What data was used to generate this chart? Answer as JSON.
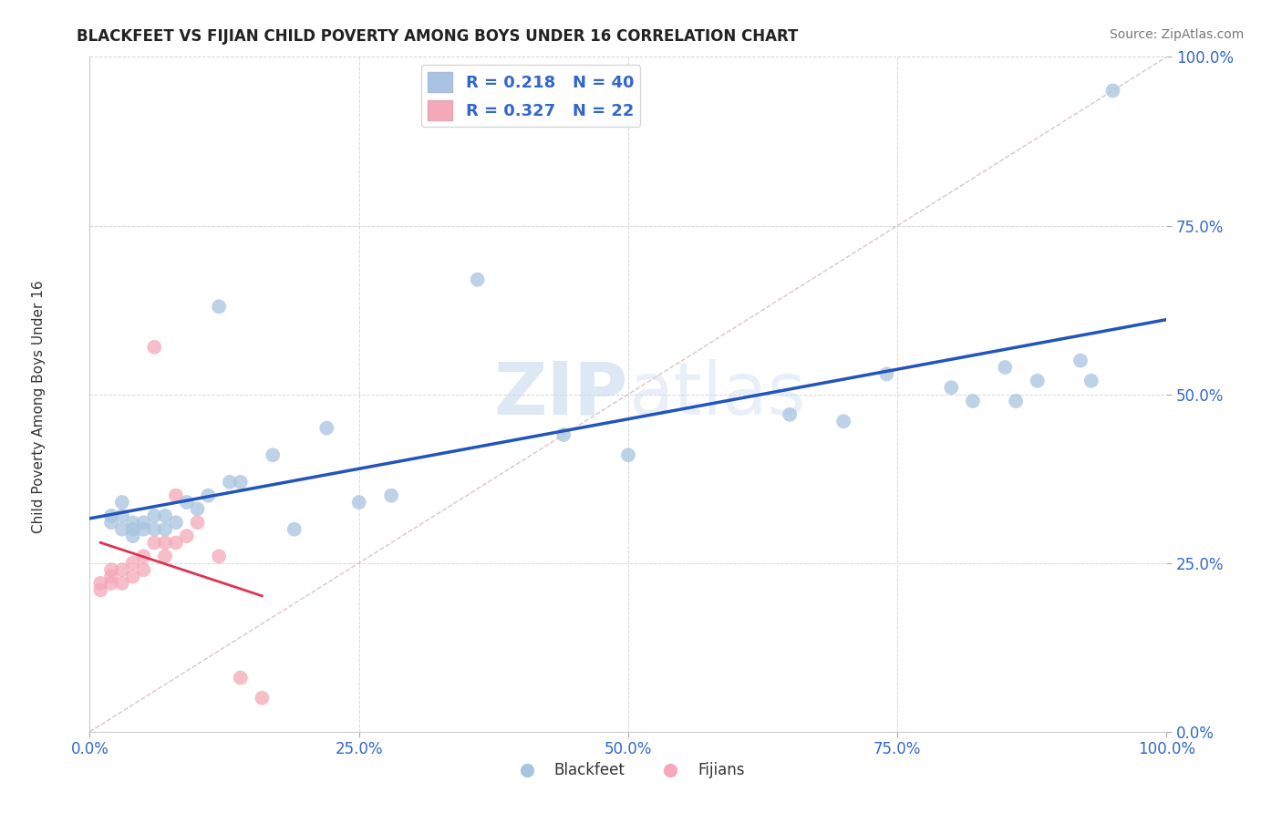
{
  "title": "BLACKFEET VS FIJIAN CHILD POVERTY AMONG BOYS UNDER 16 CORRELATION CHART",
  "source": "Source: ZipAtlas.com",
  "ylabel": "Child Poverty Among Boys Under 16",
  "watermark_zip": "ZIP",
  "watermark_atlas": "atlas",
  "legend_blue_label": "R = 0.218   N = 40",
  "legend_pink_label": "R = 0.327   N = 22",
  "legend_bottom_blue": "Blackfeet",
  "legend_bottom_pink": "Fijians",
  "blue_color": "#A8C4E0",
  "pink_color": "#F4A8B8",
  "blue_line_color": "#2255BB",
  "pink_line_color": "#DD3355",
  "diag_color": "#DDBBBB",
  "bg_color": "#FFFFFF",
  "title_fontsize": 12,
  "blue_x": [
    0.02,
    0.02,
    0.03,
    0.03,
    0.03,
    0.04,
    0.04,
    0.04,
    0.05,
    0.05,
    0.06,
    0.06,
    0.07,
    0.07,
    0.08,
    0.09,
    0.1,
    0.11,
    0.12,
    0.13,
    0.14,
    0.17,
    0.19,
    0.22,
    0.25,
    0.28,
    0.36,
    0.44,
    0.5,
    0.65,
    0.7,
    0.74,
    0.8,
    0.82,
    0.85,
    0.86,
    0.88,
    0.92,
    0.93,
    0.95
  ],
  "blue_y": [
    0.31,
    0.32,
    0.3,
    0.32,
    0.34,
    0.29,
    0.3,
    0.31,
    0.3,
    0.31,
    0.3,
    0.32,
    0.3,
    0.32,
    0.31,
    0.34,
    0.33,
    0.35,
    0.63,
    0.37,
    0.37,
    0.41,
    0.3,
    0.45,
    0.34,
    0.35,
    0.67,
    0.44,
    0.41,
    0.47,
    0.46,
    0.53,
    0.51,
    0.49,
    0.54,
    0.49,
    0.52,
    0.55,
    0.52,
    0.95
  ],
  "pink_x": [
    0.01,
    0.01,
    0.02,
    0.02,
    0.02,
    0.03,
    0.03,
    0.04,
    0.04,
    0.05,
    0.05,
    0.06,
    0.06,
    0.07,
    0.07,
    0.08,
    0.08,
    0.09,
    0.1,
    0.12,
    0.14,
    0.16
  ],
  "pink_y": [
    0.21,
    0.22,
    0.22,
    0.23,
    0.24,
    0.22,
    0.24,
    0.23,
    0.25,
    0.24,
    0.26,
    0.28,
    0.57,
    0.26,
    0.28,
    0.28,
    0.35,
    0.29,
    0.31,
    0.26,
    0.08,
    0.05
  ]
}
